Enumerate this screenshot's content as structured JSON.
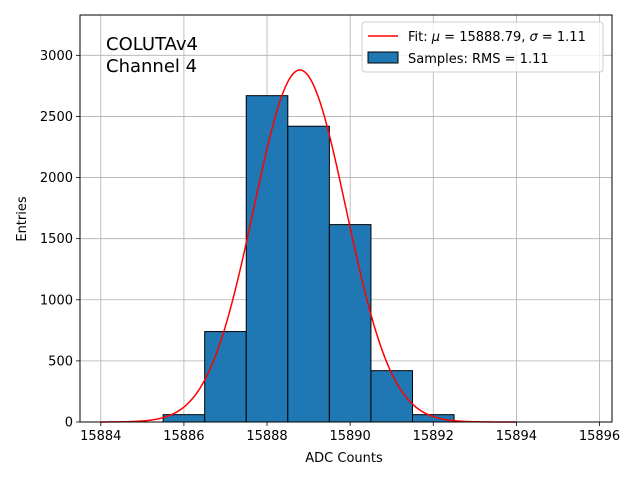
{
  "chart_data": {
    "type": "bar",
    "xlabel": "ADC Counts",
    "ylabel": "Entries",
    "xlim": [
      15883.5,
      15896.3
    ],
    "ylim": [
      0,
      3330
    ],
    "xticks": [
      15884,
      15886,
      15888,
      15890,
      15892,
      15894,
      15896
    ],
    "yticks": [
      0,
      500,
      1000,
      1500,
      2000,
      2500,
      3000
    ],
    "grid": true,
    "legend_placement": "top-right",
    "annotation": [
      "COLUTAv4",
      "Channel 4"
    ],
    "histogram": {
      "name": "Samples: RMS = 1.11",
      "color": "#1f77b4",
      "bins": [
        {
          "left": 15885.5,
          "right": 15886.5,
          "value": 60
        },
        {
          "left": 15886.5,
          "right": 15887.5,
          "value": 740
        },
        {
          "left": 15887.5,
          "right": 15888.5,
          "value": 2670
        },
        {
          "left": 15888.5,
          "right": 15889.5,
          "value": 2420
        },
        {
          "left": 15889.5,
          "right": 15890.5,
          "value": 1615
        },
        {
          "left": 15890.5,
          "right": 15891.5,
          "value": 420
        },
        {
          "left": 15891.5,
          "right": 15892.5,
          "value": 60
        }
      ]
    },
    "fit": {
      "name_prefix": "Fit: ",
      "mu_symbol": "μ",
      "mu_text": " = 15888.79, ",
      "sigma_symbol": "σ",
      "sigma_text": " = 1.11",
      "color": "#ff0000",
      "mu": 15888.79,
      "sigma": 1.11,
      "amplitude": 2880,
      "x_range": [
        15884,
        15894
      ]
    }
  }
}
